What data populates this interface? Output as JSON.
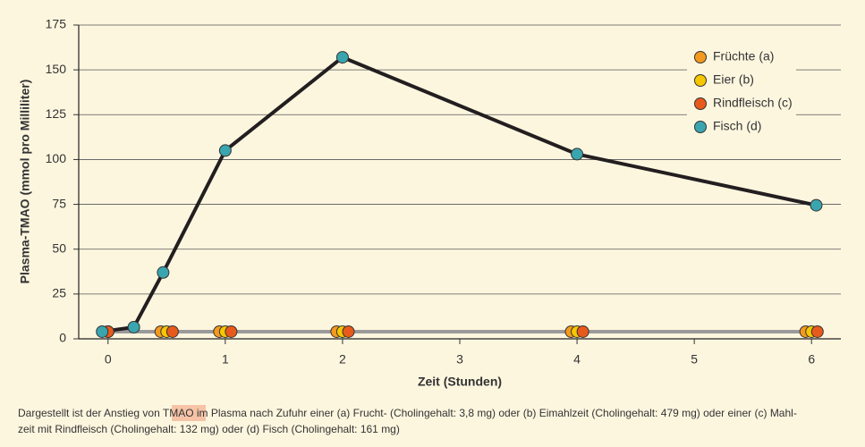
{
  "chart_data": {
    "type": "line",
    "y_label": "Plasma-TMAO (mmol pro Milliliter)",
    "x_label": "Zeit (Stunden)",
    "xlim": [
      -0.25,
      6.25
    ],
    "xticks": [
      0,
      1,
      2,
      3,
      4,
      5,
      6
    ],
    "ylim": [
      0,
      175
    ],
    "yticks": [
      0,
      25,
      50,
      75,
      100,
      125,
      150,
      175
    ],
    "grid": true,
    "legend": "upper right",
    "series": [
      {
        "name": "Früchte (a)",
        "color": "#f39a1e",
        "line_color": "#9a9a9a",
        "x": [
          0,
          0.45,
          0.95,
          1.95,
          3.95,
          5.95
        ],
        "values": [
          4,
          4,
          4,
          4,
          4,
          4
        ]
      },
      {
        "name": "Eier (b)",
        "color": "#f6c700",
        "line_color": "#9a9a9a",
        "x": [
          0,
          0.5,
          1,
          2,
          4,
          6
        ],
        "values": [
          4,
          4,
          4,
          4,
          4,
          4
        ]
      },
      {
        "name": "Rindfleisch (c)",
        "color": "#e85a1b",
        "line_color": "#9a9a9a",
        "x": [
          0,
          0.55,
          1.05,
          2.05,
          4.05,
          6.05
        ],
        "values": [
          4,
          4,
          4,
          4,
          4,
          4
        ]
      },
      {
        "name": "Fisch (d)",
        "color": "#3aa5ae",
        "line_color": "#231f20",
        "x": [
          -0.05,
          0.22,
          0.47,
          1,
          2,
          4,
          6.04
        ],
        "values": [
          4,
          6.5,
          37,
          105,
          157,
          103,
          74.5
        ]
      }
    ],
    "caption": {
      "before": "Dargestellt ist der Anstieg von ",
      "highlight": "TMAO",
      "after": " im Plasma nach Zufuhr einer (a) Frucht- (Cholingehalt: 3,8 mg) oder (b) Eimahlzeit (Cholingehalt: 479 mg) oder einer (c) Mahl-",
      "line2": "zeit mit Rindfleisch (Cholingehalt: 132 mg) oder (d) Fisch (Cholingehalt: 161 mg)"
    }
  }
}
